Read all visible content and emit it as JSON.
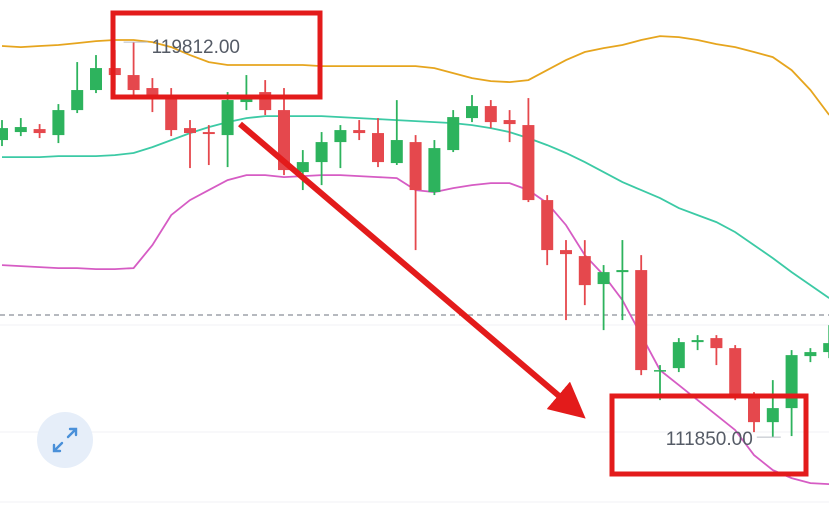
{
  "chart_data": {
    "type": "candlestick",
    "ylim": [
      110380,
      120660
    ],
    "up_color": "#2db35d",
    "down_color": "#e5484d",
    "open": [
      117837,
      117998,
      118058,
      117937,
      118441,
      118845,
      119288,
      119147,
      118885,
      118744,
      118078,
      117998,
      117937,
      118603,
      118804,
      118441,
      117191,
      117393,
      117796,
      118038,
      117978,
      117373,
      117796,
      116788,
      117635,
      118280,
      118522,
      118240,
      118139,
      116627,
      115619,
      115498,
      114934,
      115175,
      115216,
      113200,
      113240,
      113764,
      113845,
      113643,
      112696,
      112151,
      112434,
      113482,
      113563
    ],
    "high": [
      118240,
      118280,
      118159,
      118562,
      119409,
      119550,
      119651,
      119812,
      119086,
      118885,
      118240,
      118139,
      118804,
      119147,
      119046,
      118885,
      117635,
      117998,
      118139,
      118240,
      118280,
      118643,
      117937,
      117837,
      118441,
      118744,
      118643,
      118441,
      118683,
      116728,
      115821,
      115821,
      115317,
      115821,
      115518,
      113301,
      113845,
      113905,
      113905,
      113704,
      112756,
      112998,
      113603,
      113643,
      114107
    ],
    "low": [
      117716,
      117917,
      117877,
      117776,
      118381,
      118784,
      118845,
      118744,
      118401,
      117917,
      117272,
      117333,
      117292,
      118441,
      118341,
      117131,
      116829,
      116929,
      117272,
      117837,
      117292,
      117333,
      115619,
      116728,
      117595,
      118199,
      118078,
      117796,
      116587,
      115317,
      114208,
      114510,
      114006,
      114208,
      113099,
      112595,
      113160,
      113603,
      113301,
      112595,
      111950,
      111850,
      111870,
      113361,
      113442
    ],
    "close": [
      118078,
      118099,
      117978,
      118441,
      118845,
      119288,
      119147,
      118845,
      118744,
      118038,
      117978,
      117958,
      118643,
      118683,
      118441,
      117232,
      117393,
      117796,
      118038,
      117978,
      117393,
      117837,
      116829,
      117675,
      118300,
      118522,
      118199,
      118159,
      116627,
      115619,
      115538,
      114913,
      115175,
      115216,
      113200,
      113200,
      113764,
      113805,
      113643,
      112696,
      112151,
      112434,
      113502,
      113563,
      113744
    ],
    "bands": [
      {
        "color": "#e6a51e",
        "values": [
          119732,
          119711,
          119732,
          119752,
          119792,
          119832,
          119853,
          119853,
          119812,
          119711,
          119550,
          119409,
          119349,
          119349,
          119349,
          119349,
          119349,
          119328,
          119328,
          119328,
          119328,
          119328,
          119328,
          119288,
          119187,
          119086,
          119026,
          119006,
          119046,
          119248,
          119449,
          119611,
          119691,
          119752,
          119853,
          119933,
          119913,
          119853,
          119772,
          119711,
          119611,
          119510,
          119248,
          118845,
          118341
        ]
      },
      {
        "color": "#3ccaa5",
        "values": [
          117494,
          117494,
          117494,
          117514,
          117514,
          117514,
          117534,
          117575,
          117695,
          117837,
          117978,
          118099,
          118199,
          118280,
          118320,
          118320,
          118320,
          118320,
          118300,
          118280,
          118260,
          118240,
          118220,
          118199,
          118179,
          118139,
          118078,
          117998,
          117877,
          117736,
          117575,
          117393,
          117191,
          116990,
          116829,
          116667,
          116466,
          116325,
          116183,
          115982,
          115720,
          115458,
          115175,
          114913,
          114651
        ]
      },
      {
        "color": "#d65cc4",
        "values": [
          115317,
          115296,
          115276,
          115256,
          115256,
          115236,
          115236,
          115256,
          115720,
          116325,
          116627,
          116829,
          117030,
          117131,
          117131,
          117091,
          117111,
          117131,
          117131,
          117111,
          117091,
          117071,
          116829,
          116788,
          116869,
          116929,
          116970,
          116970,
          116829,
          116567,
          116123,
          115518,
          115115,
          114611,
          113905,
          113200,
          112897,
          112595,
          112293,
          111990,
          111486,
          111184,
          111023,
          110922,
          110902
        ]
      }
    ],
    "price_line": 114310,
    "high_label": "119812.00",
    "low_label": "111850.00"
  }
}
